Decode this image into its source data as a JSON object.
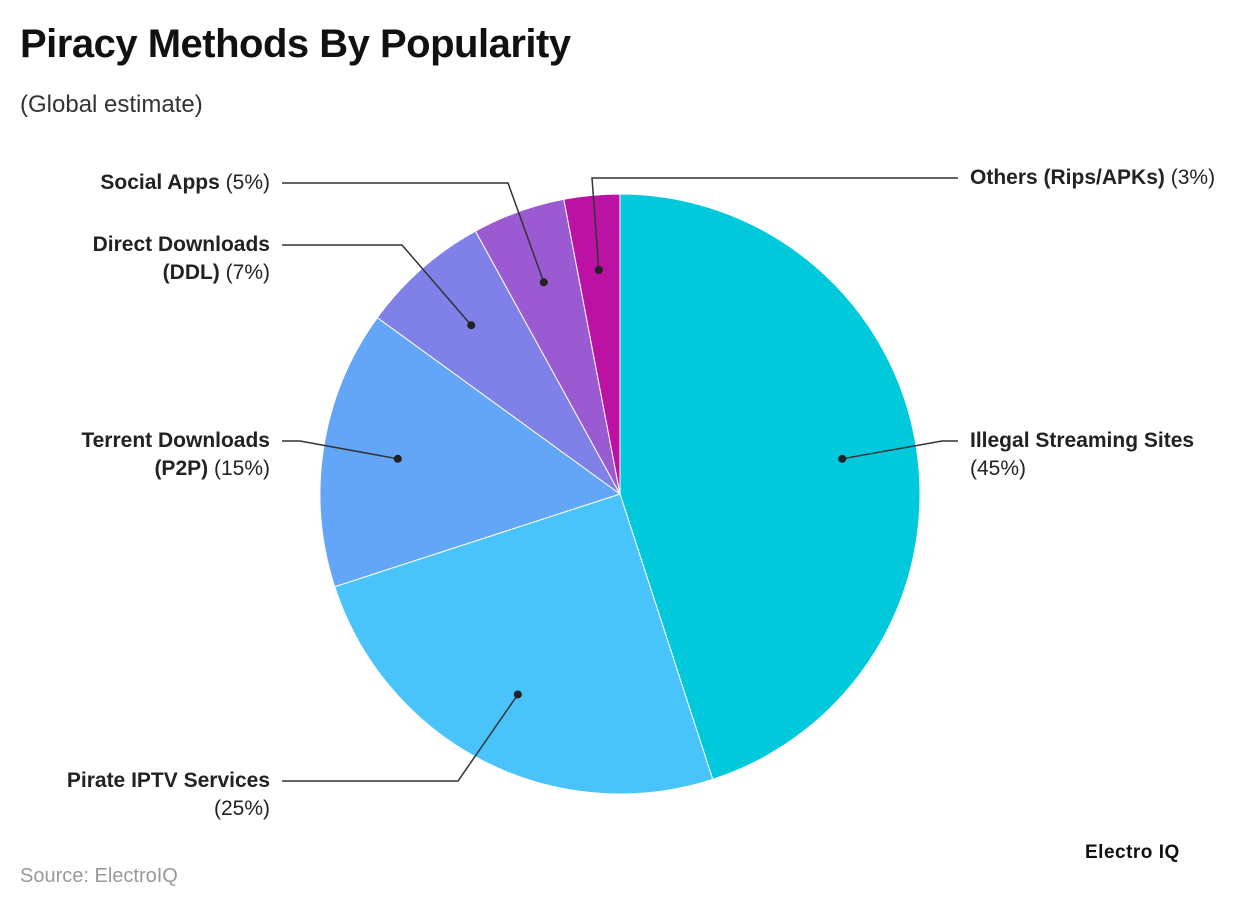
{
  "chart_data": {
    "type": "pie",
    "title": "Piracy Methods By Popularity",
    "subtitle": "(Global estimate)",
    "categories": [
      "Illegal Streaming Sites",
      "Pirate IPTV Services",
      "Terrent Downloads (P2P)",
      "Direct Downloads (DDL)",
      "Social Apps",
      "Others (Rips/APKs)"
    ],
    "values": [
      45,
      25,
      15,
      7,
      5,
      3
    ],
    "value_labels": [
      "(45%)",
      "(25%)",
      "(15%)",
      "(7%)",
      "(5%)",
      "(3%)"
    ],
    "colors": [
      "#00c9dc",
      "#48c4fb",
      "#63a6f7",
      "#7f80e8",
      "#9b5ad1",
      "#bb12a3"
    ],
    "source": "Source: ElectroIQ",
    "brand": "Electro IQ"
  }
}
